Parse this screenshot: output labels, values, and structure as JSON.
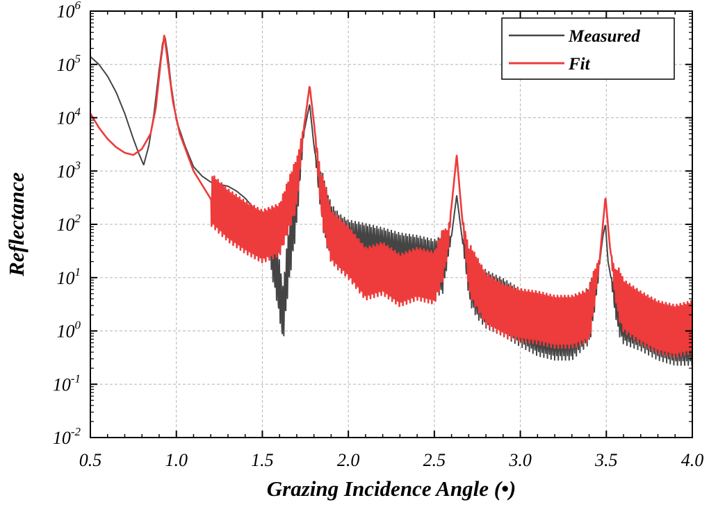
{
  "chart_data": {
    "type": "line",
    "title": "",
    "xlabel": "Grazing Incidence Angle (•)",
    "ylabel": "Reflectance",
    "xlim": [
      0.5,
      4.0
    ],
    "ylim": [
      0.01,
      1000000
    ],
    "yscale": "log",
    "grid": true,
    "legend_position": "top-right",
    "x_ticks": [
      0.5,
      1.0,
      1.5,
      2.0,
      2.5,
      3.0,
      3.5,
      4.0
    ],
    "x_tick_labels": [
      "0.5",
      "1.0",
      "1.5",
      "2.0",
      "2.5",
      "3.0",
      "3.5",
      "4.0"
    ],
    "y_tick_exponents": [
      -2,
      -1,
      0,
      1,
      2,
      3,
      4,
      5,
      6
    ],
    "y_tick_base": "10",
    "peak_positions": [
      0.93,
      1.775,
      2.63,
      3.495
    ],
    "series": [
      {
        "name": "Measured",
        "color": "#444444",
        "x": [
          0.5,
          0.55,
          0.6,
          0.65,
          0.7,
          0.75,
          0.78,
          0.81,
          0.84,
          0.87,
          0.9,
          0.92,
          0.935,
          0.95,
          0.97,
          1.0,
          1.05,
          1.1,
          1.15,
          1.2,
          1.25,
          1.3,
          1.35,
          1.4,
          1.45,
          1.5,
          1.55,
          1.58,
          1.6,
          1.62,
          1.65,
          1.7,
          1.74,
          1.775,
          1.8,
          1.83,
          1.87,
          1.9,
          1.95,
          2.0,
          2.1,
          2.2,
          2.3,
          2.4,
          2.5,
          2.55,
          2.6,
          2.63,
          2.66,
          2.7,
          2.75,
          2.8,
          2.9,
          3.0,
          3.1,
          3.2,
          3.3,
          3.4,
          3.45,
          3.48,
          3.495,
          3.51,
          3.55,
          3.6,
          3.7,
          3.8,
          3.9,
          4.0
        ],
        "y": [
          140000,
          100000,
          60000,
          30000,
          12000,
          4000,
          2200,
          1300,
          3000,
          12000,
          80000,
          250000,
          320000,
          150000,
          40000,
          9000,
          3000,
          1200,
          800,
          620,
          560,
          520,
          420,
          310,
          200,
          110,
          45,
          15,
          6,
          2,
          20,
          300,
          5000,
          18000,
          3000,
          600,
          150,
          70,
          45,
          35,
          30,
          25,
          20,
          18,
          15,
          18,
          60,
          350,
          60,
          12,
          6,
          4,
          2.8,
          1.8,
          1.2,
          1.0,
          1.0,
          2,
          10,
          60,
          100,
          20,
          4,
          2,
          1.5,
          1.0,
          0.8,
          0.8
        ]
      },
      {
        "name": "Fit",
        "color": "#ee3b3b",
        "x": [
          0.5,
          0.55,
          0.6,
          0.65,
          0.7,
          0.75,
          0.8,
          0.85,
          0.88,
          0.91,
          0.93,
          0.95,
          0.98,
          1.02,
          1.1,
          1.2,
          1.3,
          1.4,
          1.5,
          1.6,
          1.7,
          1.74,
          1.775,
          1.8,
          1.84,
          1.9,
          2.0,
          2.1,
          2.2,
          2.3,
          2.4,
          2.5,
          2.58,
          2.63,
          2.66,
          2.7,
          2.8,
          2.9,
          3.0,
          3.1,
          3.2,
          3.3,
          3.4,
          3.46,
          3.495,
          3.52,
          3.55,
          3.6,
          3.7,
          3.8,
          3.9,
          4.0
        ],
        "y": [
          12000,
          6500,
          4000,
          2800,
          2200,
          2000,
          2600,
          5000,
          15000,
          120000,
          360000,
          110000,
          20000,
          5000,
          1000,
          300,
          150,
          90,
          60,
          80,
          600,
          6000,
          40000,
          8000,
          400,
          60,
          30,
          12,
          15,
          9,
          12,
          10,
          50,
          2000,
          150,
          15,
          4,
          2.5,
          2,
          1.8,
          1.5,
          1.5,
          2,
          20,
          330,
          40,
          8,
          3,
          1.8,
          1.2,
          1.0,
          1.2
        ]
      }
    ]
  }
}
